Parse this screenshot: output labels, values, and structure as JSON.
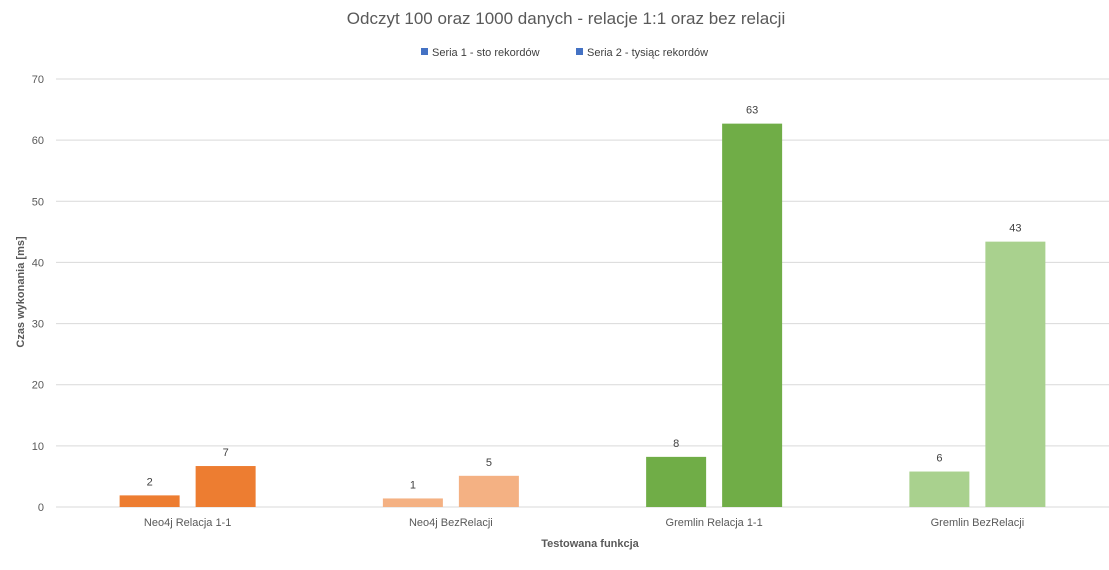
{
  "chart_data": {
    "type": "bar",
    "title": "Odczyt 100 oraz 1000  danych - relacje 1:1 oraz bez relacji",
    "xlabel": "Testowana funkcja",
    "ylabel": "Czas wykonania [ms]",
    "ylim": [
      0,
      70
    ],
    "yticks": [
      0,
      10,
      20,
      30,
      40,
      50,
      60,
      70
    ],
    "grid": true,
    "legend_position": "top",
    "categories": [
      "Neo4j Relacja 1-1",
      "Neo4j BezRelacji",
      "Gremlin Relacja 1-1",
      "Gremlin BezRelacji"
    ],
    "series": [
      {
        "name": "Seria 1 - sto rekordów",
        "legend_color": "#4472c4",
        "values": [
          1.9,
          1.4,
          8.2,
          5.8
        ],
        "labels": [
          "2",
          "1",
          "8",
          "6"
        ],
        "colors": [
          "#ed7d31",
          "#f4b183",
          "#70ad47",
          "#a9d18e"
        ]
      },
      {
        "name": "Seria 2 - tysiąc rekordów",
        "legend_color": "#4472c4",
        "values": [
          6.7,
          5.1,
          62.7,
          43.4
        ],
        "labels": [
          "7",
          "5",
          "63",
          "43"
        ],
        "colors": [
          "#ed7d31",
          "#f4b183",
          "#70ad47",
          "#a9d18e"
        ]
      }
    ]
  }
}
